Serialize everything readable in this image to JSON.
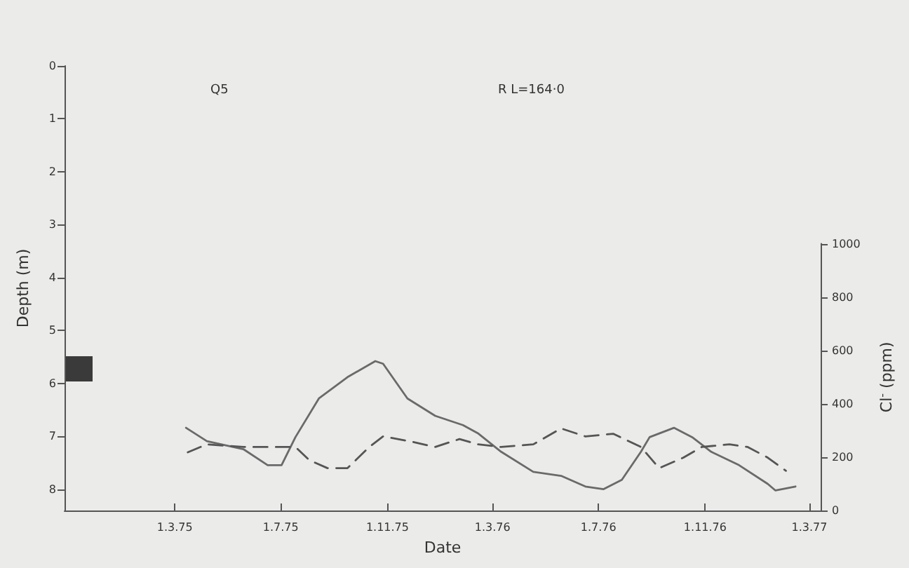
{
  "chart_data": {
    "type": "line",
    "xlabel": "Date",
    "ylabel": "Depth (m)",
    "y2label": "Cl$^{-}$ (ppm)",
    "annotations": [
      "Q5",
      "R L=164·0"
    ],
    "xlim": [
      "1974-10-25",
      "1977-03-14"
    ],
    "xticks": [
      {
        "value": "1975-03-01",
        "label": "1.3.75"
      },
      {
        "value": "1975-07-01",
        "label": "1.7.75"
      },
      {
        "value": "1975-11-01",
        "label": "1.11.75"
      },
      {
        "value": "1976-03-01",
        "label": "1.3.76"
      },
      {
        "value": "1976-07-01",
        "label": "1.7.76"
      },
      {
        "value": "1976-11-01",
        "label": "1.11.76"
      },
      {
        "value": "1977-03-01",
        "label": "1.3.77"
      }
    ],
    "ylim": [
      8.4,
      0
    ],
    "yticks": [
      0,
      1,
      2,
      3,
      4,
      5,
      6,
      7,
      8
    ],
    "y2lim": [
      0,
      1000
    ],
    "y2ticks": [
      0,
      200,
      400,
      600,
      800,
      1000
    ],
    "grid": false,
    "marker": "none",
    "series": [
      {
        "color": "#6a6a6a",
        "axis": "y2",
        "line_style": "solid",
        "x": [
          "1975-03-14",
          "1975-04-07",
          "1975-05-19",
          "1975-06-16",
          "1975-07-02",
          "1975-07-18",
          "1975-08-14",
          "1975-09-16",
          "1975-10-18",
          "1975-10-27",
          "1975-11-24",
          "1975-12-26",
          "1976-01-27",
          "1976-02-13",
          "1976-03-11",
          "1976-04-17",
          "1976-05-19",
          "1976-06-16",
          "1976-07-07",
          "1976-07-28",
          "1976-08-19",
          "1976-08-29",
          "1976-09-26",
          "1976-10-17",
          "1976-11-08",
          "1976-12-10",
          "1977-01-12",
          "1977-01-21",
          "1977-02-13"
        ],
        "values": [
          310,
          260,
          230,
          170,
          170,
          275,
          420,
          500,
          560,
          550,
          420,
          355,
          320,
          290,
          220,
          145,
          130,
          90,
          80,
          115,
          220,
          275,
          310,
          275,
          220,
          170,
          100,
          75,
          90
        ]
      },
      {
        "color": "#555555",
        "axis": "y",
        "line_style": "dashed",
        "x": [
          "1975-03-16",
          "1975-04-07",
          "1975-05-19",
          "1975-06-16",
          "1975-07-18",
          "1975-08-03",
          "1975-08-24",
          "1975-09-16",
          "1975-10-11",
          "1975-10-27",
          "1975-11-29",
          "1975-12-26",
          "1976-01-23",
          "1976-02-13",
          "1976-03-11",
          "1976-04-17",
          "1976-05-19",
          "1976-06-16",
          "1976-07-18",
          "1976-08-19",
          "1976-09-09",
          "1976-10-07",
          "1976-10-28",
          "1976-11-29",
          "1976-12-20",
          "1977-01-12",
          "1977-02-02"
        ],
        "values": [
          7.3,
          7.15,
          7.2,
          7.2,
          7.2,
          7.45,
          7.6,
          7.6,
          7.2,
          7.0,
          7.1,
          7.2,
          7.05,
          7.15,
          7.2,
          7.15,
          6.85,
          7.0,
          6.95,
          7.2,
          7.6,
          7.4,
          7.2,
          7.15,
          7.2,
          7.4,
          7.65
        ]
      }
    ]
  }
}
